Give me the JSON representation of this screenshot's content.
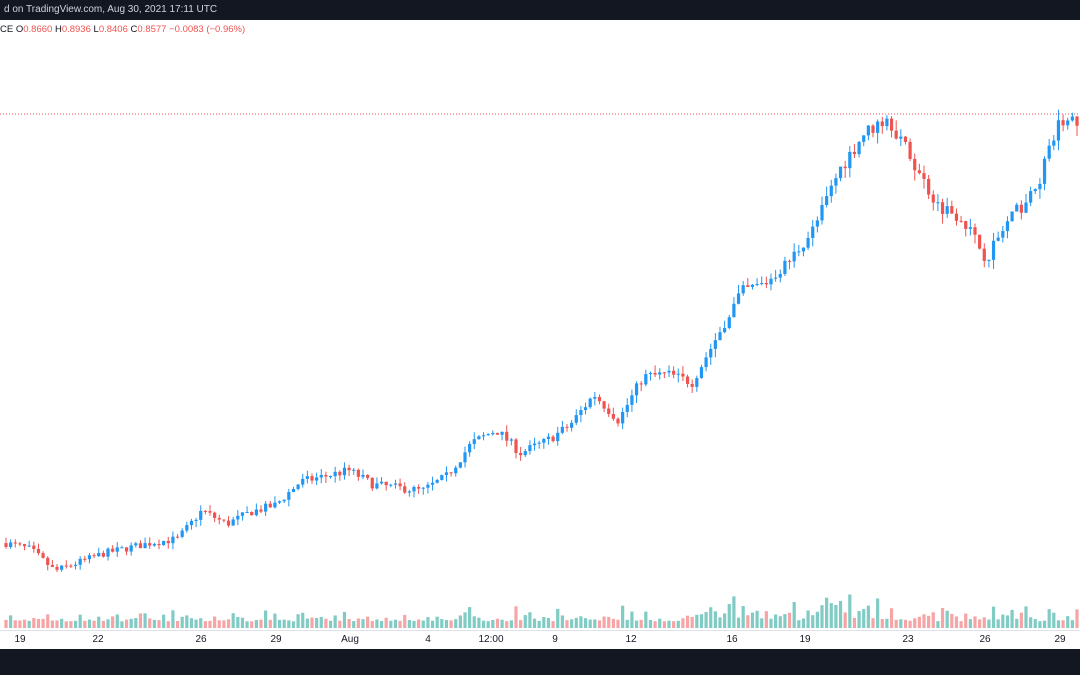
{
  "header": {
    "text": "d on TradingView.com, Aug 30, 2021 17:11 UTC"
  },
  "ohlc": {
    "prefix": "CE",
    "open_label": "O",
    "open": "0.8660",
    "high_label": "H",
    "high": "0.8936",
    "low_label": "L",
    "low": "0.8406",
    "close_label": "C",
    "close": "0.8577",
    "change": "−0.0083 (−0.96%)"
  },
  "colors": {
    "up": "#2196f3",
    "down": "#ef5350",
    "volume_up": "#80cbc4",
    "volume_down": "#f5a5a5",
    "price_line": "#ef5350",
    "header_bg": "#131722"
  },
  "chart_data": {
    "type": "candlestick",
    "x_ticks": [
      "19",
      "22",
      "26",
      "29",
      "Aug",
      "4",
      "12:00",
      "9",
      "12",
      "16",
      "19",
      "23",
      "26",
      "29"
    ],
    "current_price_line": 0.8577,
    "price_points": [
      [
        "Jul 18",
        0.237
      ],
      [
        "Jul 19",
        0.228
      ],
      [
        "Jul 20",
        0.196
      ],
      [
        "Jul 22",
        0.222
      ],
      [
        "Jul 24",
        0.238
      ],
      [
        "Jul 25",
        0.243
      ],
      [
        "Jul 26",
        0.285
      ],
      [
        "Jul 27",
        0.265
      ],
      [
        "Jul 28",
        0.283
      ],
      [
        "Jul 29",
        0.293
      ],
      [
        "Jul 30",
        0.327
      ],
      [
        "Aug 1",
        0.344
      ],
      [
        "Aug 2",
        0.323
      ],
      [
        "Aug 4",
        0.314
      ],
      [
        "Aug 5",
        0.336
      ],
      [
        "Aug 6",
        0.384
      ],
      [
        "Aug 7",
        0.404
      ],
      [
        "Aug 8",
        0.37
      ],
      [
        "Aug 9",
        0.386
      ],
      [
        "Aug 10",
        0.41
      ],
      [
        "Aug 11",
        0.456
      ],
      [
        "Aug 12",
        0.418
      ],
      [
        "Aug 13",
        0.482
      ],
      [
        "Aug 14",
        0.486
      ],
      [
        "Aug 15",
        0.474
      ],
      [
        "Aug 16",
        0.54
      ],
      [
        "Aug 17",
        0.607
      ],
      [
        "Aug 18",
        0.62
      ],
      [
        "Aug 19",
        0.654
      ],
      [
        "Aug 20",
        0.702
      ],
      [
        "Aug 21",
        0.786
      ],
      [
        "Aug 22",
        0.84
      ],
      [
        "Aug 23",
        0.865
      ],
      [
        "Aug 24",
        0.799
      ],
      [
        "Aug 25",
        0.736
      ],
      [
        "Aug 26",
        0.718
      ],
      [
        "Aug 27",
        0.657
      ],
      [
        "Aug 28",
        0.716
      ],
      [
        "Aug 29",
        0.755
      ],
      [
        "Aug 30",
        0.8577
      ]
    ]
  }
}
